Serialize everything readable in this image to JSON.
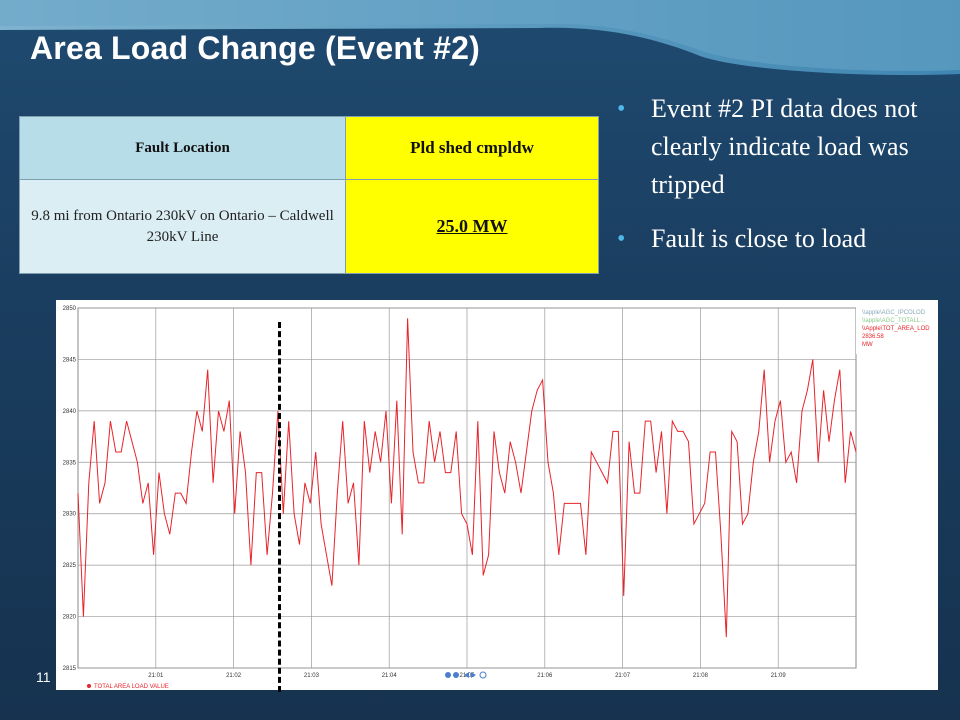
{
  "slide": {
    "title": "Area Load Change (Event #2)",
    "page_number": "11"
  },
  "table": {
    "headers": [
      "Fault Location",
      "Pld shed cmpldw"
    ],
    "rows": [
      [
        "9.8 mi from Ontario 230kV on Ontario – Caldwell 230kV Line",
        "25.0 MW"
      ]
    ]
  },
  "bullets": [
    "Event #2 PI data does not clearly indicate load was tripped",
    "Fault is close to load"
  ],
  "colors": {
    "series": "#e8232a",
    "bullet": "#4fb6e8",
    "highlight": "#ffff00",
    "header": "#b7dde8"
  },
  "chart_data": {
    "type": "line",
    "ylim": [
      2815,
      2850
    ],
    "yticks": [
      "2850",
      "2845",
      "2840",
      "2835",
      "2830",
      "2825",
      "2820",
      "2815"
    ],
    "xticks": [
      "21:01",
      "21:02",
      "21:03",
      "21:04",
      "21:05",
      "21:06",
      "21:07",
      "21:08",
      "21:09"
    ],
    "legend": {
      "entries": [
        "\\\\apple\\AGC_IPCOLOD",
        "\\\\apple\\AGC_TOTALL...",
        "\\\\Apple\\TOT_AREA_LOD"
      ],
      "value": "2836.58",
      "unit": "MW"
    },
    "footer_label": "TOTAL AREA LOAD VALUE",
    "series": [
      {
        "name": "TOTAL AREA LOAD VALUE",
        "values": [
          2832,
          2820,
          2833,
          2839,
          2831,
          2833,
          2839,
          2836,
          2836,
          2839,
          2837,
          2835,
          2831,
          2833,
          2826,
          2834,
          2830,
          2828,
          2832,
          2832,
          2831,
          2836,
          2840,
          2838,
          2844,
          2833,
          2840,
          2838,
          2841,
          2830,
          2838,
          2834,
          2825,
          2834,
          2834,
          2826,
          2832,
          2840,
          2830,
          2839,
          2830,
          2827,
          2833,
          2831,
          2836,
          2829,
          2826,
          2823,
          2832,
          2839,
          2831,
          2833,
          2825,
          2839,
          2834,
          2838,
          2835,
          2840,
          2831,
          2841,
          2828,
          2849,
          2836,
          2833,
          2833,
          2839,
          2835,
          2838,
          2834,
          2834,
          2838,
          2830,
          2829,
          2826,
          2839,
          2824,
          2826,
          2838,
          2834,
          2832,
          2837,
          2835,
          2832,
          2836,
          2840,
          2842,
          2843,
          2835,
          2832,
          2826,
          2831,
          2831,
          2831,
          2831,
          2826,
          2836,
          2835,
          2834,
          2833,
          2838,
          2838,
          2822,
          2837,
          2832,
          2832,
          2839,
          2839,
          2834,
          2838,
          2830,
          2839,
          2838,
          2838,
          2837,
          2829,
          2830,
          2831,
          2836,
          2836,
          2828,
          2818,
          2838,
          2837,
          2829,
          2830,
          2835,
          2838,
          2844,
          2835,
          2839,
          2841,
          2835,
          2836,
          2833,
          2840,
          2842,
          2845,
          2835,
          2842,
          2837,
          2841,
          2844,
          2833,
          2838,
          2836
        ]
      }
    ]
  }
}
